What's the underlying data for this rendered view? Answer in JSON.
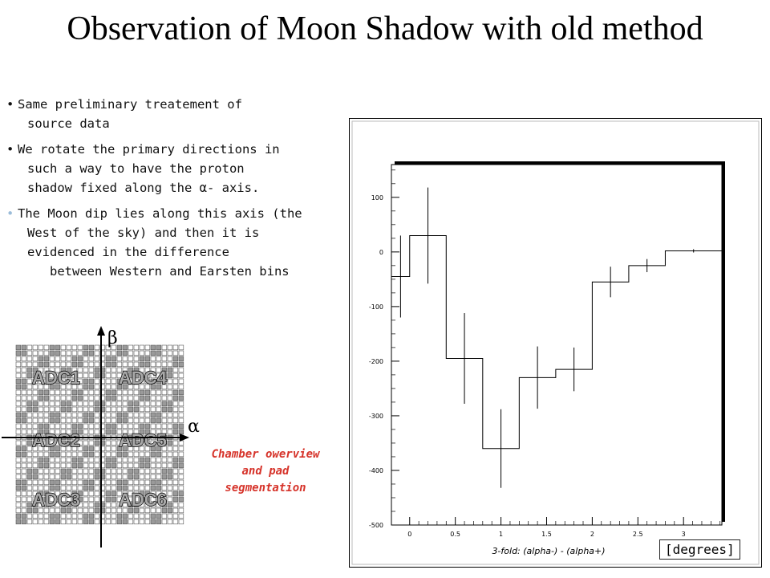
{
  "slide": {
    "title": "Observation of Moon Shadow with old method",
    "bullets": [
      {
        "dot": "•",
        "lines": [
          "Same preliminary treatement of",
          "source data"
        ]
      },
      {
        "dot": "•",
        "lines": [
          "We rotate the primary directions in",
          "such a way to have the proton",
          "shadow fixed along the α- axis."
        ]
      },
      {
        "dot": "•",
        "lines": [
          "The Moon dip lies along this axis (the",
          "West of the sky) and then it is",
          "evidenced in the difference",
          "between Western and Earsten bins"
        ]
      }
    ]
  },
  "chamber": {
    "beta_label": "β",
    "alpha_label": "α",
    "adc_labels": [
      "ADC1",
      "ADC4",
      "ADC2",
      "ADC5",
      "ADC3",
      "ADC6"
    ],
    "caption_lines": [
      "Chamber owerview",
      "and pad",
      "segmentation"
    ]
  },
  "chart_data": {
    "type": "line",
    "step": true,
    "xlabel": "3-fold: (alpha-) - (alpha+)",
    "unit_label": "[degrees]",
    "xlim": [
      -0.2,
      3.42
    ],
    "ylim": [
      -500,
      160
    ],
    "xticks": [
      0,
      0.5,
      1,
      1.5,
      2,
      2.5,
      3
    ],
    "yticks": [
      100,
      0,
      -100,
      -200,
      -300,
      -400,
      -500
    ],
    "bins": [
      {
        "x0": -0.2,
        "x1": 0.0,
        "y": -45,
        "err": 75
      },
      {
        "x0": 0.0,
        "x1": 0.4,
        "y": 30,
        "err": 88
      },
      {
        "x0": 0.4,
        "x1": 0.8,
        "y": -195,
        "err": 83
      },
      {
        "x0": 0.8,
        "x1": 1.2,
        "y": -360,
        "err": 72
      },
      {
        "x0": 1.2,
        "x1": 1.6,
        "y": -230,
        "err": 57
      },
      {
        "x0": 1.6,
        "x1": 2.0,
        "y": -215,
        "err": 40
      },
      {
        "x0": 2.0,
        "x1": 2.4,
        "y": -55,
        "err": 28
      },
      {
        "x0": 2.4,
        "x1": 2.8,
        "y": -25,
        "err": 12
      },
      {
        "x0": 2.8,
        "x1": 3.42,
        "y": 2,
        "err": 3
      }
    ],
    "grid": false
  }
}
